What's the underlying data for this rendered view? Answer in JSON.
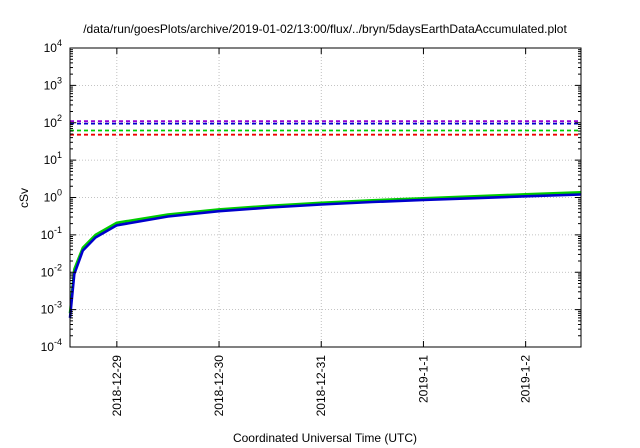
{
  "chart_data": {
    "type": "line",
    "title": "/data/run/goesPlots/archive/2019-01-02/13:00/flux/../bryn/5daysEarthDataAccumulated.plot",
    "xlabel": "Coordinated Universal Time (UTC)",
    "ylabel": "cSv",
    "y_scale": "log",
    "ylim": [
      0.0001,
      10000
    ],
    "y_ticks": [
      {
        "value": 0.0001,
        "base": "10",
        "exp": "-4"
      },
      {
        "value": 0.001,
        "base": "10",
        "exp": "-3"
      },
      {
        "value": 0.01,
        "base": "10",
        "exp": "-2"
      },
      {
        "value": 0.1,
        "base": "10",
        "exp": "-1"
      },
      {
        "value": 1,
        "base": "10",
        "exp": "0"
      },
      {
        "value": 10,
        "base": "10",
        "exp": "1"
      },
      {
        "value": 100,
        "base": "10",
        "exp": "2"
      },
      {
        "value": 1000,
        "base": "10",
        "exp": "3"
      },
      {
        "value": 10000,
        "base": "10",
        "exp": "4"
      }
    ],
    "xlim": [
      "2018-12-28 13:00",
      "2019-01-02 13:00"
    ],
    "x_ticks": [
      {
        "value": "2018-12-29 00:00",
        "label": "2018-12-29"
      },
      {
        "value": "2018-12-30 00:00",
        "label": "2018-12-30"
      },
      {
        "value": "2018-12-31 00:00",
        "label": "2018-12-31"
      },
      {
        "value": "2019-01-01 00:00",
        "label": "2019-1-1"
      },
      {
        "value": "2019-01-02 00:00",
        "label": "2019-1-2"
      }
    ],
    "grid": true,
    "legend": null,
    "series": [
      {
        "color": "#00cc00",
        "style": "solid",
        "x": [
          "2018-12-28 13:00",
          "2018-12-28 14:00",
          "2018-12-28 16:00",
          "2018-12-28 19:00",
          "2018-12-29 00:00",
          "2018-12-29 12:00",
          "2018-12-30 00:00",
          "2018-12-30 12:00",
          "2018-12-31 00:00",
          "2018-12-31 12:00",
          "2019-01-01 00:00",
          "2019-01-01 12:00",
          "2019-01-02 00:00",
          "2019-01-02 13:00"
        ],
        "y": [
          0.0008,
          0.012,
          0.045,
          0.1,
          0.21,
          0.35,
          0.48,
          0.6,
          0.72,
          0.84,
          0.95,
          1.08,
          1.22,
          1.38
        ]
      },
      {
        "color": "#0000cc",
        "style": "solid",
        "x": [
          "2018-12-28 13:00",
          "2018-12-28 14:00",
          "2018-12-28 16:00",
          "2018-12-28 19:00",
          "2018-12-29 00:00",
          "2018-12-29 12:00",
          "2018-12-30 00:00",
          "2018-12-30 12:00",
          "2018-12-31 00:00",
          "2018-12-31 12:00",
          "2019-01-01 00:00",
          "2019-01-01 12:00",
          "2019-01-02 00:00",
          "2019-01-02 13:00"
        ],
        "y": [
          0.0006,
          0.009,
          0.038,
          0.085,
          0.18,
          0.31,
          0.43,
          0.54,
          0.65,
          0.76,
          0.86,
          0.96,
          1.08,
          1.2
        ]
      },
      {
        "color": "#9400d3",
        "style": "dashed",
        "x": [
          "2018-12-28 13:00",
          "2019-01-02 13:00"
        ],
        "y": [
          110,
          110
        ]
      },
      {
        "color": "#0000cc",
        "style": "dashed",
        "x": [
          "2018-12-28 13:00",
          "2019-01-02 13:00"
        ],
        "y": [
          95,
          95
        ]
      },
      {
        "color": "#00cc00",
        "style": "dashed",
        "x": [
          "2018-12-28 13:00",
          "2019-01-02 13:00"
        ],
        "y": [
          62,
          62
        ]
      },
      {
        "color": "#ee0000",
        "style": "dashed",
        "x": [
          "2018-12-28 13:00",
          "2019-01-02 13:00"
        ],
        "y": [
          48,
          48
        ]
      }
    ]
  }
}
